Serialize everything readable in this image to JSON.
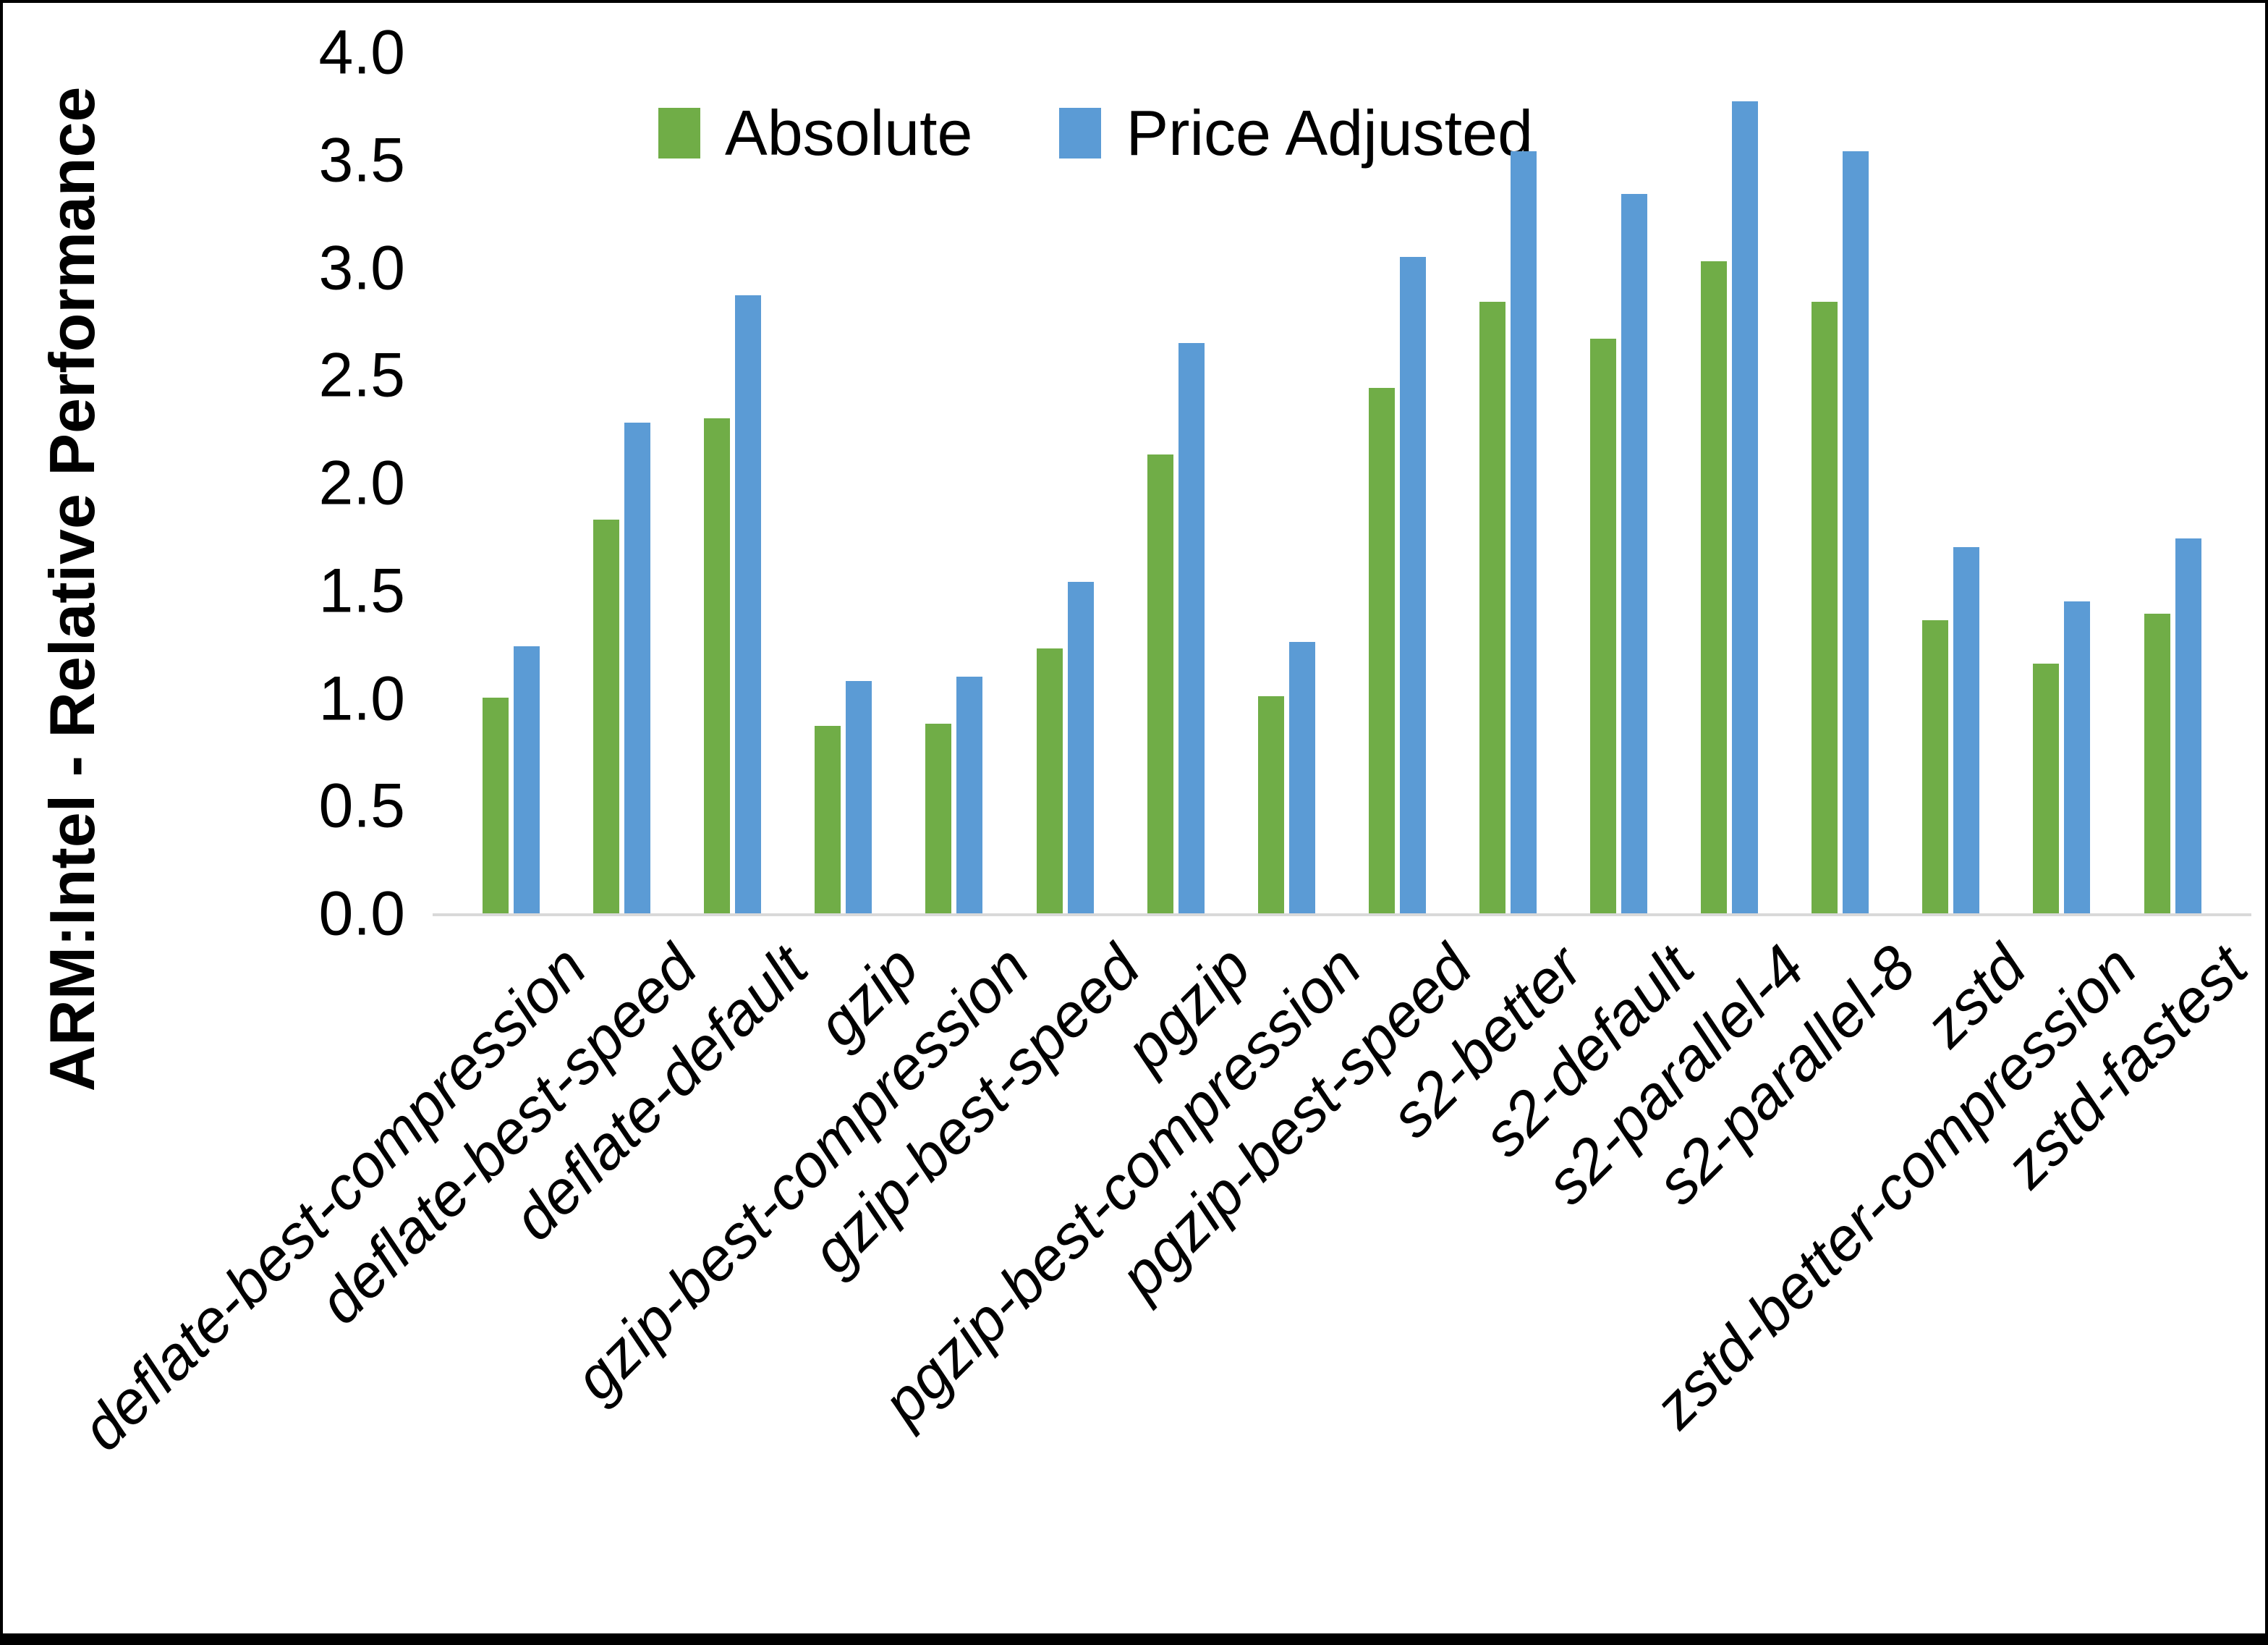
{
  "y_axis": {
    "title": "ARM:Intel - Relative Performance",
    "tick_labels": [
      "0.0",
      "0.5",
      "1.0",
      "1.5",
      "2.0",
      "2.5",
      "3.0",
      "3.5",
      "4.0"
    ],
    "min": 0,
    "max": 4,
    "step": 0.5
  },
  "legend": {
    "items": [
      {
        "label": "Absolute",
        "color": "#70AD47"
      },
      {
        "label": "Price Adjusted",
        "color": "#5B9BD5"
      }
    ]
  },
  "chart_data": {
    "type": "bar",
    "title": "",
    "xlabel": "",
    "ylabel": "ARM:Intel - Relative Performance",
    "ylim": [
      0,
      4
    ],
    "grid": false,
    "legend_position": "top",
    "categories": [
      "deflate-best-compression",
      "deflate-best-speed",
      "deflate-default",
      "gzip",
      "gzip-best-compression",
      "gzip-best-speed",
      "pgzip",
      "pgzip-best-compression",
      "pgzip-best-speed",
      "s2-better",
      "s2-default",
      "s2-parallel-4",
      "s2-parallel-8",
      "zstd",
      "zstd-better-compression",
      "zstd-fastest"
    ],
    "series": [
      {
        "name": "Absolute",
        "color": "#70AD47",
        "values": [
          1.0,
          1.83,
          2.3,
          0.87,
          0.88,
          1.23,
          2.13,
          1.01,
          2.44,
          2.84,
          2.67,
          3.03,
          2.84,
          1.36,
          1.16,
          1.39
        ]
      },
      {
        "name": "Price Adjusted",
        "color": "#5B9BD5",
        "values": [
          1.24,
          2.28,
          2.87,
          1.08,
          1.1,
          1.54,
          2.65,
          1.26,
          3.05,
          3.54,
          3.34,
          3.77,
          3.54,
          1.7,
          1.45,
          1.74
        ]
      }
    ]
  }
}
